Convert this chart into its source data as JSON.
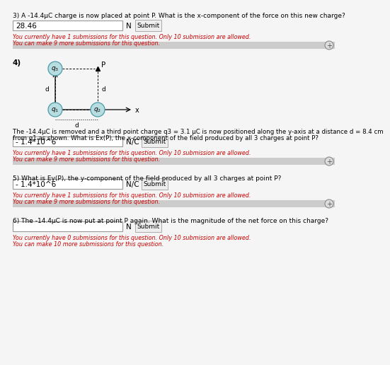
{
  "bg_color": "#f5f5f5",
  "white": "#ffffff",
  "red_text": "#cc0000",
  "black": "#000000",
  "section3": {
    "question": "3) A -14.4μC charge is now placed at point P. What is the x-component of the force on this new charge?",
    "answer": "28.46",
    "unit": "N",
    "sub1": "You currently have 1 submissions for this question. Only 10 submission are allowed.",
    "sub2": "You can make 9 more submissions for this question."
  },
  "section4": {
    "label": "4)",
    "desc1": "The -14.4μC is removed and a third point charge q3 = 3.1 μC is now positioned along the y-axis at a distance d = 8.4 cm",
    "desc2": "from q1 as shown. What is Ex(P), the x-component of the field produced by all 3 charges at point P?",
    "answer": "- 1.4*10^6",
    "unit": "N/C",
    "sub1": "You currently have 1 submissions for this question. Only 10 submission are allowed.",
    "sub2": "You can make 9 more submissions for this question."
  },
  "section5": {
    "question": "5) What is Ey(P), the y-component of the field produced by all 3 charges at point P?",
    "answer": "- 1.4*10^6",
    "unit": "N/C",
    "sub1": "You currently have 1 submissions for this question. Only 10 submission are allowed.",
    "sub2": "You can make 9 more submissions for this question."
  },
  "section6": {
    "question": "6) The -14.4μC is now put at point P again. What is the magnitude of the net force on this charge?",
    "answer": "",
    "unit": "N",
    "sub1": "You currently have 0 submissions for this question. Only 10 submission are allowed.",
    "sub2": "You can make 10 more submissions for this question."
  }
}
